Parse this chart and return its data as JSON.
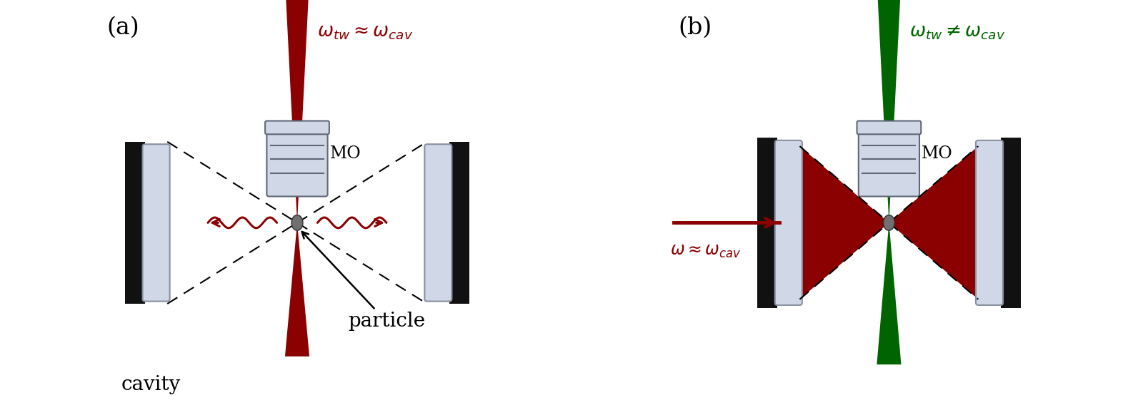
{
  "panel_a": {
    "label": "(a)",
    "tw_color": "#8B0000",
    "wavy_color": "#8B0000",
    "mirror_black": "#111111",
    "mirror_silver_light": "#d0d8e8",
    "mirror_silver_dark": "#8890a0",
    "particle_color": "#606060",
    "eq_text": "$\\omega_{tw} \\approx \\omega_{cav}$",
    "label_cavity": "cavity",
    "label_particle": "particle",
    "label_MO": "MO"
  },
  "panel_b": {
    "label": "(b)",
    "tw_color": "#006400",
    "cav_color": "#8B0000",
    "mirror_black": "#111111",
    "mirror_silver_light": "#d0d8e8",
    "mirror_silver_dark": "#8890a0",
    "particle_color": "#606060",
    "eq_text": "$\\omega_{tw} \\neq \\omega_{cav}$",
    "pump_text": "$\\omega \\approx \\omega_{cav}$",
    "label_MO": "MO"
  },
  "bg_color": "#ffffff"
}
